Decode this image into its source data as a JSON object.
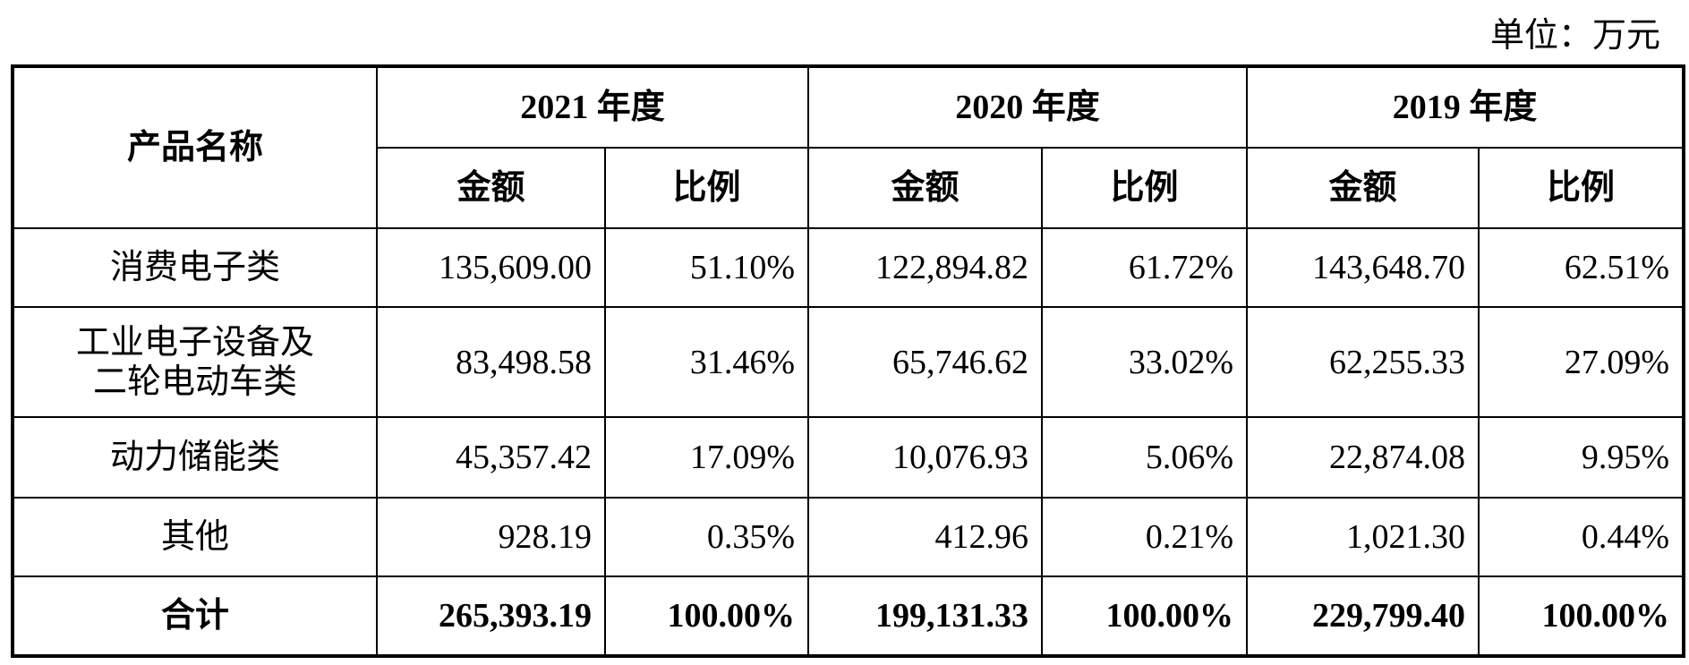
{
  "header": {
    "unit": "单位：万元"
  },
  "table": {
    "name_header": "产品名称",
    "years": [
      "2021 年度",
      "2020 年度",
      "2019 年度"
    ],
    "sub_headers": [
      "金额",
      "比例",
      "金额",
      "比例",
      "金额",
      "比例"
    ],
    "rows": [
      [
        [
          "消费电子类"
        ],
        "135,609.00",
        "51.10%",
        "122,894.82",
        "61.72%",
        "143,648.70",
        "62.51%"
      ],
      [
        [
          "工业电子设备及",
          "二轮电动车类"
        ],
        "83,498.58",
        "31.46%",
        "65,746.62",
        "33.02%",
        "62,255.33",
        "27.09%"
      ],
      [
        [
          "动力储能类"
        ],
        "45,357.42",
        "17.09%",
        "10,076.93",
        "5.06%",
        "22,874.08",
        "9.95%"
      ],
      [
        [
          "其他"
        ],
        "928.19",
        "0.35%",
        "412.96",
        "0.21%",
        "1,021.30",
        "0.44%"
      ]
    ],
    "total": [
      [
        "合计"
      ],
      "265,393.19",
      "100.00%",
      "199,131.33",
      "100.00%",
      "229,799.40",
      "100.00%"
    ]
  }
}
